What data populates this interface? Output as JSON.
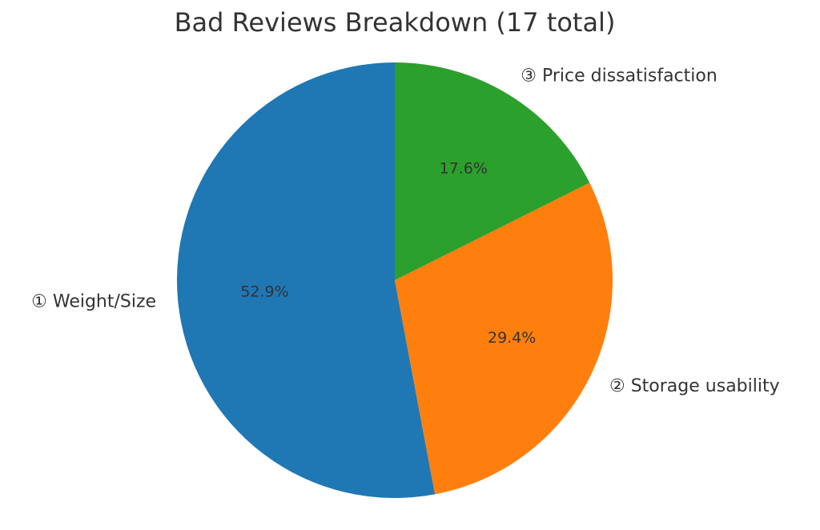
{
  "chart_data": {
    "type": "pie",
    "title": "Bad Reviews Breakdown (17 total)",
    "categories": [
      "① Weight/Size",
      "② Storage usability",
      "③ Price dissatisfaction"
    ],
    "values": [
      52.9,
      29.4,
      17.6
    ],
    "value_labels": [
      "52.9%",
      "29.4%",
      "17.6%"
    ],
    "colors": [
      "#1f77b4",
      "#ff7f0e",
      "#2ca02c"
    ]
  }
}
